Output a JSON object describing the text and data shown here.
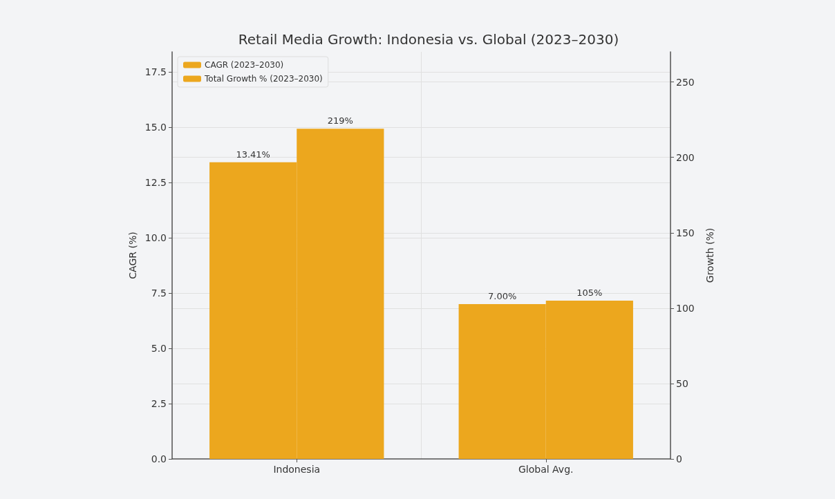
{
  "chart_data": {
    "type": "bar",
    "title": "Retail Media Growth: Indonesia vs. Global (2023–2030)",
    "categories": [
      "Indonesia",
      "Global Avg."
    ],
    "series": [
      {
        "name": "CAGR (2023–2030)",
        "color": "#eca71e",
        "values": [
          13.41,
          7.0
        ],
        "value_labels": [
          "13.41%",
          "7.00%"
        ]
      },
      {
        "name": "Total Growth % (2023–2030)",
        "color": "#eca71e",
        "values": [
          219,
          105
        ],
        "value_labels": [
          "219%",
          "105%"
        ],
        "axis": "y2"
      }
    ],
    "ylabel": "CAGR (%)",
    "y2label": "Growth (%)",
    "ylim": [
      0,
      18.4
    ],
    "yticks": [
      {
        "value": 0,
        "label": "0.0"
      },
      2.5,
      {
        "value": 5,
        "label": "5.0"
      },
      7.5,
      {
        "value": 10,
        "label": "10.0"
      },
      12.5,
      {
        "value": 15,
        "label": "15.0"
      },
      17.5
    ],
    "y2lim": [
      0,
      270
    ],
    "y2ticks": [
      0,
      50,
      100,
      150,
      200,
      250
    ],
    "grid": true,
    "legend": "top left"
  }
}
